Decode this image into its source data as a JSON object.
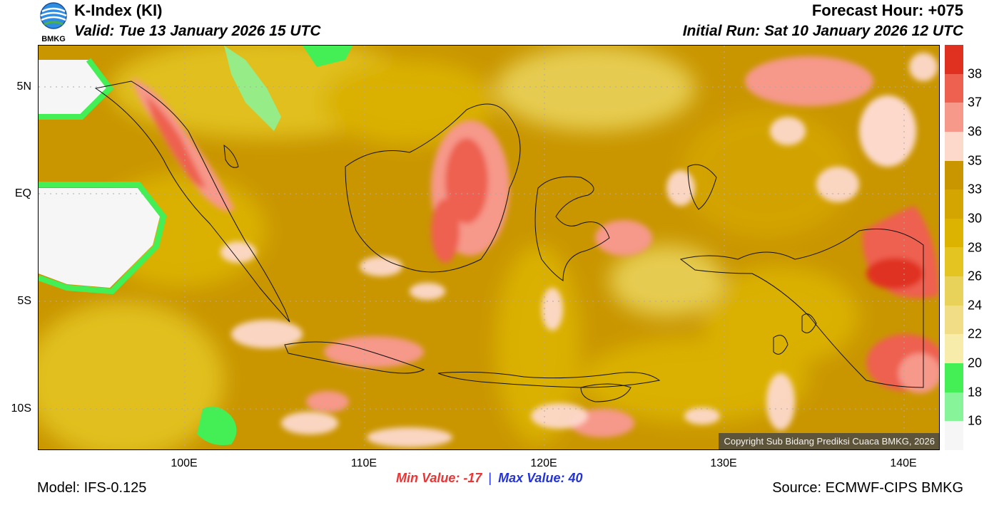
{
  "header": {
    "title": "K-Index (KI)",
    "valid": "Valid: Tue 13 January 2026 15 UTC",
    "forecast_hour": "Forecast Hour: +075",
    "initial_run": "Initial Run: Sat 10 January 2026 12 UTC",
    "logo_text": "BMKG"
  },
  "map": {
    "lat_labels": [
      "5N",
      "EQ",
      "5S",
      "10S"
    ],
    "lon_labels": [
      "100E",
      "110E",
      "120E",
      "130E",
      "140E"
    ],
    "copyright": "Copyright Sub Bidang Prediksi Cuaca BMKG, 2026"
  },
  "colorbar": {
    "labels": [
      "38",
      "37",
      "36",
      "35",
      "33",
      "30",
      "28",
      "26",
      "24",
      "22",
      "20",
      "18",
      "16"
    ],
    "colors": [
      "#e03020",
      "#ee6050",
      "#f6988a",
      "#fdd9cc",
      "#c99600",
      "#d4a500",
      "#dcb400",
      "#e3c420",
      "#e9d25a",
      "#f0dd86",
      "#f8ecaa",
      "#44ee55",
      "#88f49a",
      "#f6f6f6"
    ]
  },
  "stats": {
    "min_label": "Min Value: -17",
    "separator": "|",
    "max_label": "Max Value:  40"
  },
  "footer": {
    "model": "Model: IFS-0.125",
    "source": "Source: ECMWF-CIPS BMKG"
  }
}
